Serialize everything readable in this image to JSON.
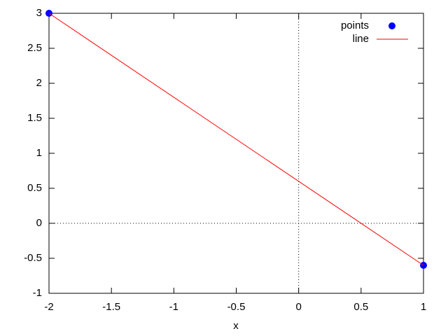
{
  "chart_data": {
    "type": "line",
    "xlabel": "x",
    "xlim": [
      -2,
      1
    ],
    "ylim": [
      -1,
      3
    ],
    "xticks": [
      -2,
      -1.5,
      -1,
      -0.5,
      0,
      0.5,
      1
    ],
    "yticks": [
      -1,
      -0.5,
      0,
      0.5,
      1,
      1.5,
      2,
      2.5,
      3
    ],
    "zeroaxis": true,
    "legend": "top right",
    "series": [
      {
        "name": "points",
        "style": "points",
        "color": "#0000ff",
        "x": [
          -2,
          1
        ],
        "values": [
          3,
          -0.6
        ]
      },
      {
        "name": "line",
        "style": "line",
        "color": "#ff0000",
        "x": [
          -2,
          1
        ],
        "values": [
          3,
          -0.6
        ]
      }
    ]
  }
}
